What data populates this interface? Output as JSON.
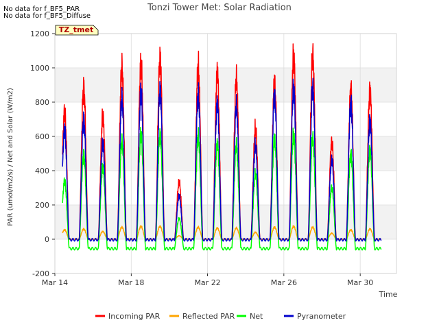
{
  "notes": [
    "No data for f_BF5_PAR",
    "No data for f_BF5_Diffuse"
  ],
  "chart_data": {
    "type": "line",
    "title": "Tonzi Tower Met: Solar Radiation",
    "xlabel": "Time",
    "ylabel": "PAR (umol/m2/s) / Net and Solar (W/m2)",
    "site_label": "TZ_tmet",
    "xlim": [
      14.0,
      31.9
    ],
    "ylim": [
      -200,
      1200
    ],
    "yticks": [
      -200,
      0,
      200,
      400,
      600,
      800,
      1000,
      1200
    ],
    "xticks": [
      {
        "value": 14,
        "label": "Mar 14"
      },
      {
        "value": 18,
        "label": "Mar 18"
      },
      {
        "value": 22,
        "label": "Mar 22"
      },
      {
        "value": 26,
        "label": "Mar 26"
      },
      {
        "value": 30,
        "label": "Mar 30"
      }
    ],
    "grid": true,
    "legend_position": "bottom",
    "x_start": 14.4,
    "x_end": 31.1,
    "days": [
      14.9,
      15.9,
      16.9,
      17.9,
      18.9,
      19.9,
      20.9,
      21.9,
      22.9,
      23.9,
      24.9,
      25.9,
      26.9,
      27.9,
      28.9,
      29.9,
      30.9
    ],
    "series": [
      {
        "name": "Incoming PAR",
        "color": "#ff0000",
        "night": 0,
        "peaks": [
          745,
          890,
          720,
          1005,
          1030,
          1060,
          330,
          1010,
          975,
          935,
          645,
          920,
          1080,
          1070,
          565,
          880,
          870
        ]
      },
      {
        "name": "Reflected PAR",
        "color": "#ffa500",
        "night": 0,
        "peaks": [
          55,
          60,
          45,
          70,
          75,
          75,
          20,
          70,
          65,
          65,
          40,
          70,
          75,
          70,
          35,
          55,
          60
        ]
      },
      {
        "name": "Net",
        "color": "#00ff00",
        "night": -55,
        "peaks": [
          340,
          495,
          420,
          570,
          620,
          610,
          120,
          600,
          555,
          545,
          380,
          590,
          615,
          590,
          300,
          500,
          520
        ]
      },
      {
        "name": "Pyranometer",
        "color": "#0000cc",
        "night": -3,
        "peaks": [
          640,
          700,
          560,
          820,
          865,
          870,
          250,
          840,
          790,
          775,
          545,
          840,
          885,
          880,
          465,
          800,
          690
        ]
      }
    ]
  }
}
